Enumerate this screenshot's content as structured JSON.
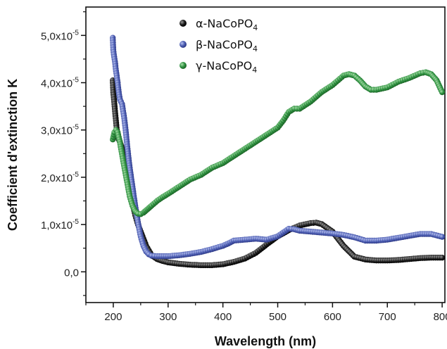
{
  "chart_data": {
    "type": "scatter",
    "xlabel": "Wavelength (nm)",
    "ylabel": "Coefficient d'extinction K",
    "xlim": [
      150,
      805
    ],
    "ylim": [
      -6.5e-06,
      5.6e-05
    ],
    "x_ticks": [
      200,
      300,
      400,
      500,
      600,
      700,
      800
    ],
    "x_tick_labels": [
      "200",
      "300",
      "400",
      "500",
      "600",
      "700",
      "800"
    ],
    "y_ticks": [
      0,
      1e-05,
      2e-05,
      3e-05,
      4e-05,
      5e-05
    ],
    "y_tick_labels": [
      {
        "mantissa": "0,0",
        "exp": ""
      },
      {
        "mantissa": "1,0x10",
        "exp": "-5"
      },
      {
        "mantissa": "2,0x10",
        "exp": "-5"
      },
      {
        "mantissa": "3,0x10",
        "exp": "-5"
      },
      {
        "mantissa": "4,0x10",
        "exp": "-5"
      },
      {
        "mantissa": "5,0x10",
        "exp": "-5"
      }
    ],
    "grid": false,
    "legend_position": "top-center",
    "series": [
      {
        "name": "α-NaCoPO",
        "name_subscript": "4",
        "color": "#1a1a1a",
        "x": [
          199,
          200,
          202,
          204,
          206,
          208,
          210,
          212,
          215,
          218,
          220,
          223,
          226,
          230,
          235,
          240,
          245,
          250,
          255,
          260,
          265,
          270,
          280,
          290,
          300,
          320,
          340,
          360,
          380,
          400,
          420,
          440,
          460,
          480,
          500,
          520,
          540,
          560,
          570,
          580,
          600,
          620,
          640,
          660,
          680,
          700,
          720,
          740,
          760,
          780,
          800
        ],
        "y": [
          4.05e-05,
          3.8e-05,
          3.55e-05,
          3.3e-05,
          3.05e-05,
          2.85e-05,
          2.8e-05,
          2.75e-05,
          2.65e-05,
          2.5e-05,
          2.4e-05,
          2.15e-05,
          1.95e-05,
          1.7e-05,
          1.45e-05,
          1.2e-05,
          1e-05,
          8.5e-06,
          7e-06,
          5.5e-06,
          4.5e-06,
          3.5e-06,
          2.7e-06,
          2.3e-06,
          2e-06,
          1.7e-06,
          1.5e-06,
          1.4e-06,
          1.4e-06,
          1.6e-06,
          2.1e-06,
          2.8e-06,
          4e-06,
          5.8e-06,
          7.5e-06,
          8.8e-06,
          9.8e-06,
          1.03e-05,
          1.04e-05,
          1.01e-05,
          8.5e-06,
          5.5e-06,
          3.2e-06,
          2.6e-06,
          2.4e-06,
          2.4e-06,
          2.5e-06,
          2.7e-06,
          2.9e-06,
          3e-06,
          3e-06
        ]
      },
      {
        "name": "β-NaCoPO",
        "name_subscript": "4",
        "color": "#4a5bb0",
        "x": [
          199,
          200,
          201,
          203,
          205,
          208,
          210,
          212,
          214,
          216,
          218,
          220,
          223,
          226,
          230,
          235,
          240,
          245,
          250,
          255,
          260,
          265,
          270,
          280,
          300,
          320,
          340,
          360,
          380,
          400,
          410,
          420,
          440,
          460,
          480,
          500,
          510,
          520,
          530,
          540,
          560,
          580,
          600,
          620,
          640,
          660,
          680,
          700,
          720,
          740,
          760,
          780,
          800
        ],
        "y": [
          4.95e-05,
          4.7e-05,
          4.6e-05,
          4.45e-05,
          4.25e-05,
          4e-05,
          3.8e-05,
          3.65e-05,
          3.6e-05,
          3.55e-05,
          3.4e-05,
          3.25e-05,
          2.95e-05,
          2.6e-05,
          2.2e-05,
          1.8e-05,
          1.4e-05,
          1.05e-05,
          7.5e-06,
          5.5e-06,
          4.3e-06,
          3.7e-06,
          3.4e-06,
          3.3e-06,
          3.3e-06,
          3.5e-06,
          3.8e-06,
          4.2e-06,
          4.8e-06,
          5.5e-06,
          6e-06,
          6.6e-06,
          6.8e-06,
          7e-06,
          6.8e-06,
          7.5e-06,
          8.3e-06,
          9.1e-06,
          9e-06,
          8.7e-06,
          8.5e-06,
          8.3e-06,
          8.1e-06,
          7.8e-06,
          7.3e-06,
          6.6e-06,
          6.6e-06,
          6.8e-06,
          7.2e-06,
          7.6e-06,
          8e-06,
          8e-06,
          7.4e-06
        ]
      },
      {
        "name": "γ-NaCoPO",
        "name_subscript": "4",
        "color": "#2e9040",
        "x": [
          199,
          200,
          202,
          205,
          208,
          210,
          212,
          215,
          218,
          222,
          226,
          230,
          235,
          240,
          245,
          250,
          255,
          260,
          265,
          270,
          280,
          290,
          300,
          320,
          340,
          360,
          380,
          400,
          420,
          440,
          460,
          480,
          500,
          510,
          520,
          530,
          540,
          560,
          580,
          600,
          620,
          630,
          640,
          650,
          660,
          670,
          680,
          700,
          720,
          740,
          760,
          770,
          780,
          790,
          800
        ],
        "y": [
          2.8e-05,
          2.85e-05,
          2.95e-05,
          3e-05,
          2.95e-05,
          2.85e-05,
          2.75e-05,
          2.55e-05,
          2.35e-05,
          2.1e-05,
          1.85e-05,
          1.6e-05,
          1.4e-05,
          1.28e-05,
          1.23e-05,
          1.22e-05,
          1.25e-05,
          1.3e-05,
          1.35e-05,
          1.4e-05,
          1.5e-05,
          1.58e-05,
          1.65e-05,
          1.8e-05,
          1.95e-05,
          2.05e-05,
          2.2e-05,
          2.3e-05,
          2.45e-05,
          2.6e-05,
          2.75e-05,
          2.9e-05,
          3.05e-05,
          3.2e-05,
          3.38e-05,
          3.45e-05,
          3.45e-05,
          3.6e-05,
          3.8e-05,
          3.95e-05,
          4.15e-05,
          4.18e-05,
          4.15e-05,
          4.05e-05,
          3.92e-05,
          3.85e-05,
          3.85e-05,
          3.9e-05,
          4.02e-05,
          4.1e-05,
          4.2e-05,
          4.22e-05,
          4.18e-05,
          4.05e-05,
          3.8e-05
        ]
      }
    ]
  }
}
